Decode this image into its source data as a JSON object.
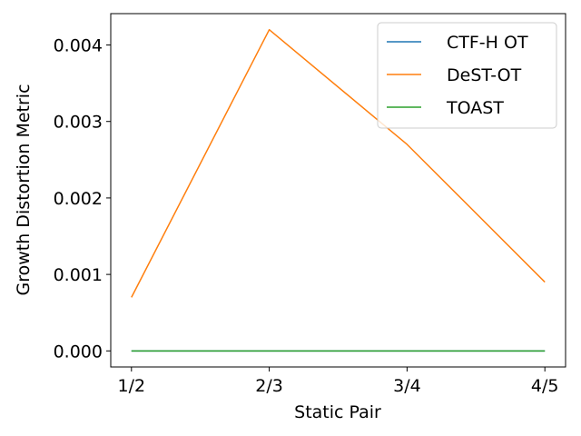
{
  "chart_data": {
    "type": "line",
    "title": "",
    "xlabel": "Static Pair",
    "ylabel": "Growth Distortion Metric",
    "categories": [
      "1/2",
      "2/3",
      "3/4",
      "4/5"
    ],
    "y_ticks": [
      "0.000",
      "0.001",
      "0.002",
      "0.003",
      "0.004"
    ],
    "ylim": [
      -0.00021,
      0.00441
    ],
    "grid": false,
    "legend_position": "upper-right",
    "series": [
      {
        "name": "CTF-H OT",
        "color": "#1f77b4",
        "values": [
          0,
          0,
          0,
          0
        ]
      },
      {
        "name": "DeST-OT",
        "color": "#ff7f0e",
        "values": [
          0.0007,
          0.0042,
          0.0027,
          0.0009
        ]
      },
      {
        "name": "TOAST",
        "color": "#2ca02c",
        "values": [
          0,
          0,
          0,
          0
        ]
      }
    ]
  }
}
